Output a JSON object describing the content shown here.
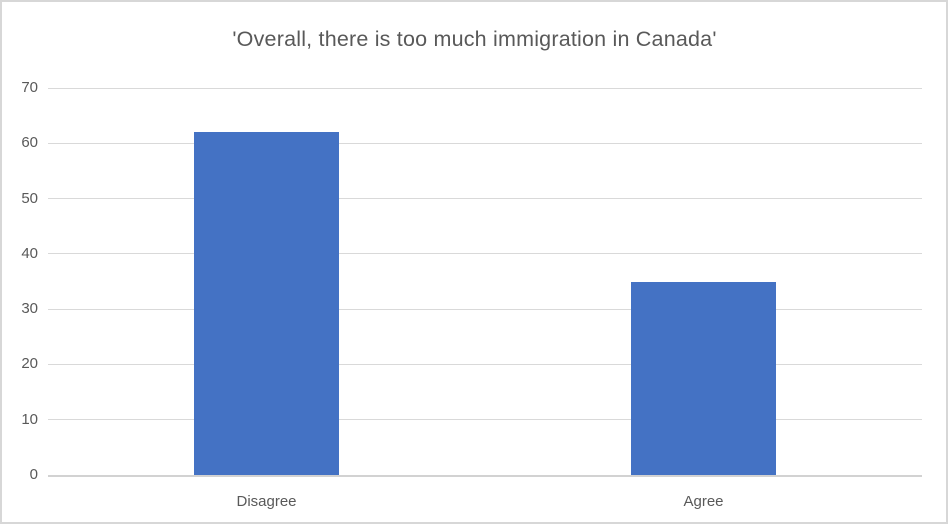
{
  "chart_data": {
    "type": "bar",
    "title": "'Overall, there is too much immigration in Canada'",
    "categories": [
      "Disagree",
      "Agree"
    ],
    "values": [
      62,
      35
    ],
    "xlabel": "",
    "ylabel": "",
    "ylim": [
      0,
      70
    ],
    "yticks": [
      0,
      10,
      20,
      30,
      40,
      50,
      60,
      70
    ],
    "grid": true,
    "legend": false,
    "colors": {
      "bar": "#4472C4",
      "gridline": "#D9D9D9",
      "axis_line": "#D2D2D2",
      "text": "#595959",
      "border": "#D7D7D7",
      "background": "#FFFFFF"
    }
  }
}
